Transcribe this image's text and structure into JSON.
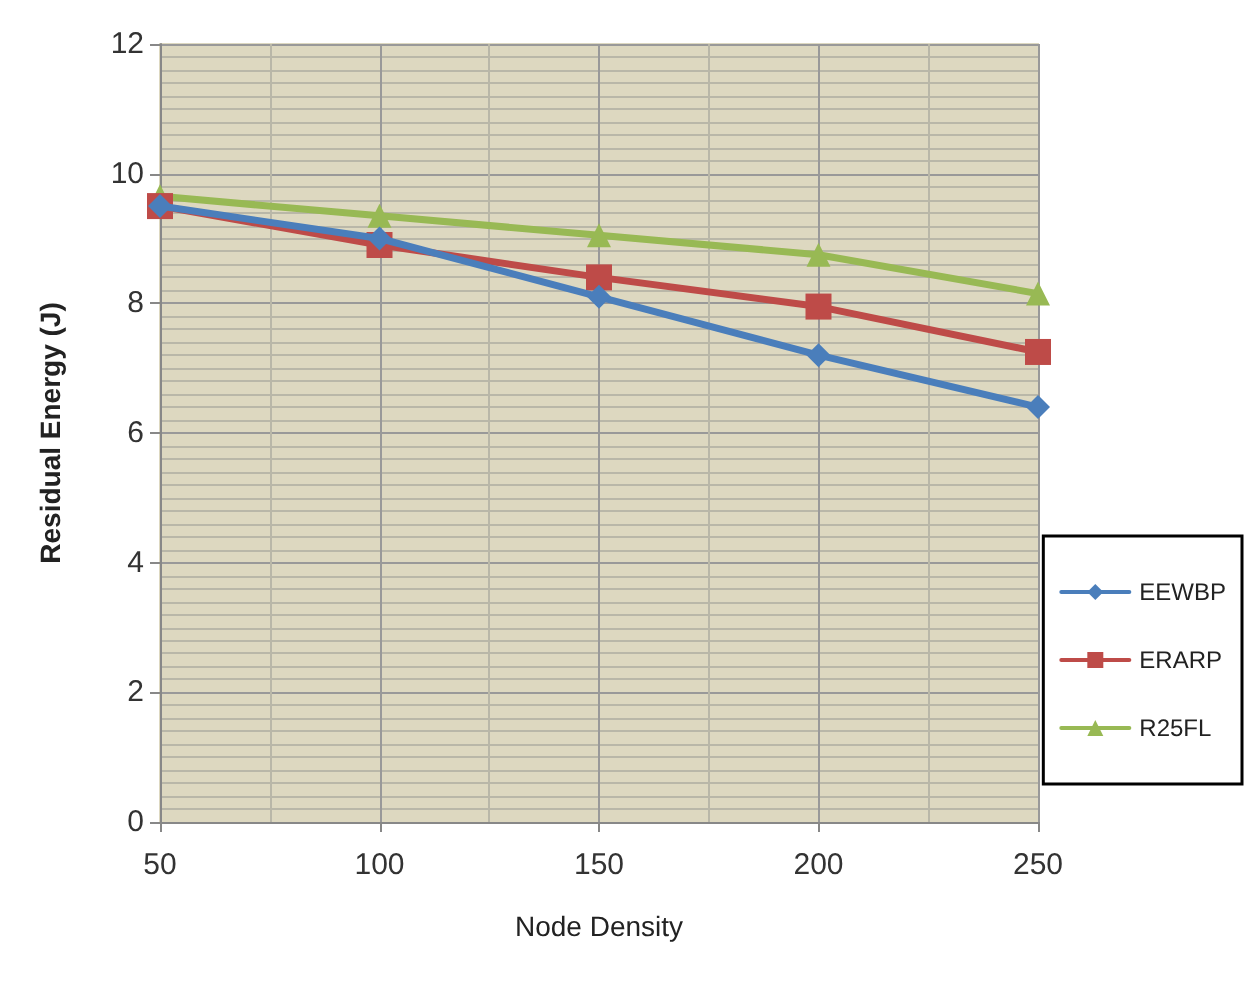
{
  "chart_data": {
    "type": "line",
    "xlabel": "Node Density",
    "ylabel": "Residual Energy (J)",
    "x": [
      50,
      100,
      150,
      200,
      250
    ],
    "series": [
      {
        "name": "EEWBP",
        "color": "#4a7ebb",
        "marker": "diamond",
        "values": [
          9.5,
          9.0,
          8.1,
          7.2,
          6.4
        ]
      },
      {
        "name": "ERARP",
        "color": "#be4b48",
        "marker": "square",
        "values": [
          9.5,
          8.9,
          8.4,
          7.95,
          7.25
        ]
      },
      {
        "name": "R25FL",
        "color": "#98b954",
        "marker": "triangle",
        "values": [
          9.65,
          9.35,
          9.05,
          8.75,
          8.15
        ]
      }
    ],
    "xlim": [
      50,
      250
    ],
    "xticks": [
      50,
      100,
      150,
      200,
      250
    ],
    "ylim": [
      0,
      12
    ],
    "yticks": [
      0,
      2,
      4,
      6,
      8,
      10,
      12
    ],
    "grid": true,
    "legend": "right"
  }
}
